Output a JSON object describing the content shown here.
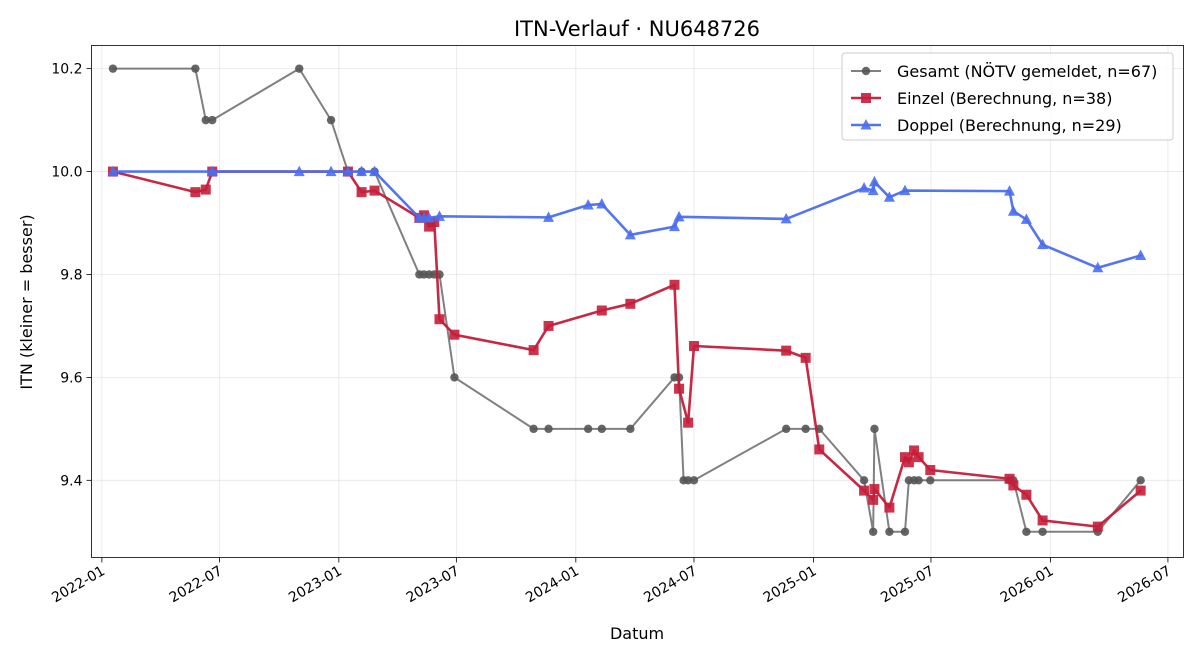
{
  "chart_data": {
    "type": "line",
    "title": "ITN-Verlauf · NU648726",
    "xlabel": "Datum",
    "ylabel": "ITN  (kleiner = besser)",
    "x_range": [
      "2021-12-16",
      "2026-07-25"
    ],
    "ylim": [
      9.25,
      10.245
    ],
    "x_ticks": [
      "2022-01-01",
      "2022-07-01",
      "2023-01-01",
      "2023-07-01",
      "2024-01-01",
      "2024-07-01",
      "2025-01-01",
      "2025-07-01",
      "2026-01-01",
      "2026-07-01"
    ],
    "x_tick_labels": [
      "2022-01",
      "2022-07",
      "2023-01",
      "2023-07",
      "2024-01",
      "2024-07",
      "2025-01",
      "2025-07",
      "2026-01",
      "2026-07"
    ],
    "y_ticks": [
      9.4,
      9.6,
      9.8,
      10.0,
      10.2
    ],
    "y_tick_labels": [
      "9.4",
      "9.6",
      "9.8",
      "10.0",
      "10.2"
    ],
    "grid": true,
    "legend_position": "top-right",
    "series": [
      {
        "name": "Gesamt (NÖTV gemeldet, n=67)",
        "color": "#555555",
        "marker": "circle",
        "points": [
          [
            "2022-01-18",
            10.2
          ],
          [
            "2022-05-25",
            10.2
          ],
          [
            "2022-06-10",
            10.1
          ],
          [
            "2022-06-20",
            10.1
          ],
          [
            "2022-11-01",
            10.2
          ],
          [
            "2022-12-20",
            10.1
          ],
          [
            "2023-01-15",
            10.0
          ],
          [
            "2023-02-05",
            10.0
          ],
          [
            "2023-02-25",
            10.0
          ],
          [
            "2023-05-05",
            9.8
          ],
          [
            "2023-05-12",
            9.8
          ],
          [
            "2023-05-20",
            9.8
          ],
          [
            "2023-05-28",
            9.8
          ],
          [
            "2023-06-05",
            9.8
          ],
          [
            "2023-06-28",
            9.6
          ],
          [
            "2023-10-28",
            9.5
          ],
          [
            "2023-11-20",
            9.5
          ],
          [
            "2024-01-20",
            9.5
          ],
          [
            "2024-02-10",
            9.5
          ],
          [
            "2024-03-25",
            9.5
          ],
          [
            "2024-06-01",
            9.6
          ],
          [
            "2024-06-08",
            9.6
          ],
          [
            "2024-06-15",
            9.4
          ],
          [
            "2024-06-22",
            9.4
          ],
          [
            "2024-07-01",
            9.4
          ],
          [
            "2024-11-20",
            9.5
          ],
          [
            "2024-12-20",
            9.5
          ],
          [
            "2025-01-10",
            9.5
          ],
          [
            "2025-03-20",
            9.4
          ],
          [
            "2025-04-03",
            9.3
          ],
          [
            "2025-04-05",
            9.5
          ],
          [
            "2025-04-28",
            9.3
          ],
          [
            "2025-05-22",
            9.3
          ],
          [
            "2025-05-28",
            9.4
          ],
          [
            "2025-06-05",
            9.4
          ],
          [
            "2025-06-12",
            9.4
          ],
          [
            "2025-06-30",
            9.4
          ],
          [
            "2025-10-30",
            9.4
          ],
          [
            "2025-11-05",
            9.4
          ],
          [
            "2025-11-25",
            9.3
          ],
          [
            "2025-12-20",
            9.3
          ],
          [
            "2026-03-15",
            9.3
          ],
          [
            "2026-05-20",
            9.4
          ]
        ]
      },
      {
        "name": "Einzel (Berechnung, n=38)",
        "color": "#c41e3a",
        "marker": "square",
        "points": [
          [
            "2022-01-18",
            10.0
          ],
          [
            "2022-05-25",
            9.96
          ],
          [
            "2022-06-10",
            9.965
          ],
          [
            "2022-06-20",
            10.0
          ],
          [
            "2023-01-15",
            10.0
          ],
          [
            "2023-02-05",
            9.96
          ],
          [
            "2023-02-25",
            9.963
          ],
          [
            "2023-05-05",
            9.91
          ],
          [
            "2023-05-12",
            9.915
          ],
          [
            "2023-05-20",
            9.893
          ],
          [
            "2023-05-28",
            9.902
          ],
          [
            "2023-06-05",
            9.713
          ],
          [
            "2023-06-28",
            9.683
          ],
          [
            "2023-10-28",
            9.653
          ],
          [
            "2023-11-20",
            9.7
          ],
          [
            "2024-02-10",
            9.73
          ],
          [
            "2024-03-25",
            9.743
          ],
          [
            "2024-06-01",
            9.78
          ],
          [
            "2024-06-08",
            9.578
          ],
          [
            "2024-06-22",
            9.512
          ],
          [
            "2024-07-01",
            9.661
          ],
          [
            "2024-11-20",
            9.652
          ],
          [
            "2024-12-20",
            9.638
          ],
          [
            "2025-01-10",
            9.46
          ],
          [
            "2025-03-20",
            9.38
          ],
          [
            "2025-04-03",
            9.362
          ],
          [
            "2025-04-05",
            9.383
          ],
          [
            "2025-04-28",
            9.347
          ],
          [
            "2025-05-22",
            9.445
          ],
          [
            "2025-05-28",
            9.435
          ],
          [
            "2025-06-05",
            9.458
          ],
          [
            "2025-06-12",
            9.445
          ],
          [
            "2025-06-30",
            9.42
          ],
          [
            "2025-10-30",
            9.403
          ],
          [
            "2025-11-05",
            9.39
          ],
          [
            "2025-11-25",
            9.372
          ],
          [
            "2025-12-20",
            9.322
          ],
          [
            "2026-03-15",
            9.31
          ],
          [
            "2026-05-20",
            9.38
          ]
        ]
      },
      {
        "name": "Doppel (Berechnung, n=29)",
        "color": "#4a6ef0",
        "marker": "triangle",
        "points": [
          [
            "2022-01-18",
            10.0
          ],
          [
            "2022-06-20",
            10.0
          ],
          [
            "2022-11-01",
            10.0
          ],
          [
            "2022-12-20",
            10.0
          ],
          [
            "2023-01-15",
            10.0
          ],
          [
            "2023-02-05",
            10.0
          ],
          [
            "2023-02-25",
            10.0
          ],
          [
            "2023-05-05",
            9.91
          ],
          [
            "2023-05-12",
            9.91
          ],
          [
            "2023-05-20",
            9.91
          ],
          [
            "2023-06-05",
            9.913
          ],
          [
            "2023-11-20",
            9.911
          ],
          [
            "2024-01-20",
            9.935
          ],
          [
            "2024-02-10",
            9.937
          ],
          [
            "2024-03-25",
            9.877
          ],
          [
            "2024-06-01",
            9.893
          ],
          [
            "2024-06-08",
            9.912
          ],
          [
            "2024-11-20",
            9.908
          ],
          [
            "2025-03-20",
            9.968
          ],
          [
            "2025-04-03",
            9.963
          ],
          [
            "2025-04-05",
            9.98
          ],
          [
            "2025-04-28",
            9.95
          ],
          [
            "2025-05-22",
            9.963
          ],
          [
            "2025-10-30",
            9.962
          ],
          [
            "2025-11-05",
            9.923
          ],
          [
            "2025-11-25",
            9.907
          ],
          [
            "2025-12-20",
            9.858
          ],
          [
            "2026-03-15",
            9.813
          ],
          [
            "2026-05-20",
            9.837
          ]
        ]
      }
    ]
  }
}
